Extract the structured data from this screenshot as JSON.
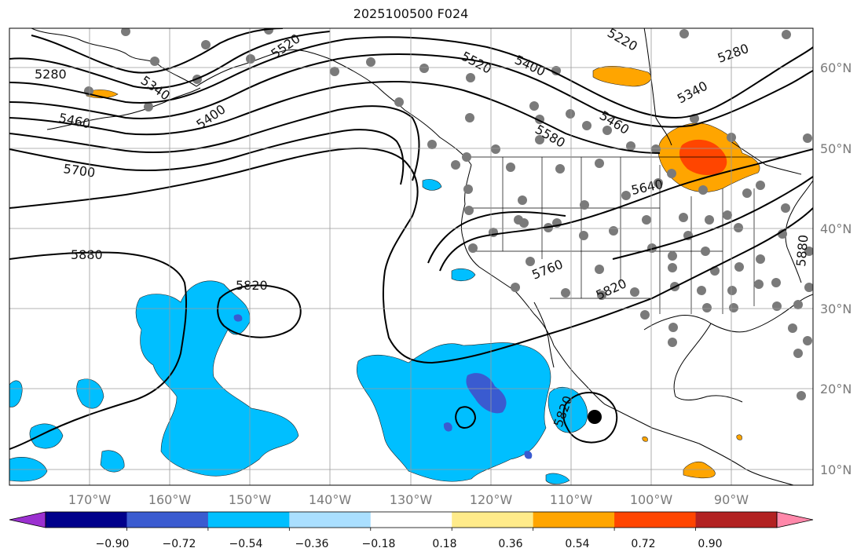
{
  "title": "2025100500 F024",
  "map": {
    "lon_labels": [
      "170°W",
      "160°W",
      "150°W",
      "140°W",
      "130°W",
      "120°W",
      "110°W",
      "100°W",
      "90°W"
    ],
    "lat_labels": [
      "60°N",
      "50°N",
      "40°N",
      "30°N",
      "20°N",
      "10°N"
    ],
    "contour_labels": [
      "5280",
      "5340",
      "5400",
      "5520",
      "5220",
      "5280",
      "5400",
      "5520",
      "5460",
      "5580",
      "5340",
      "5460",
      "5700",
      "5640",
      "5880",
      "5820",
      "5760",
      "5820",
      "5820",
      "5880"
    ]
  },
  "colorbar": {
    "tick_labels": [
      "−0.90",
      "−0.72",
      "−0.54",
      "−0.36",
      "−0.18",
      "0.18",
      "0.36",
      "0.54",
      "0.72",
      "0.90"
    ],
    "colors": [
      "#9b30d0",
      "#00008b",
      "#3a5bd0",
      "#00bfff",
      "#aadfff",
      "#ffffff",
      "#ffeb8a",
      "#ffa500",
      "#ff4500",
      "#b22222",
      "#ff88aa"
    ]
  }
}
